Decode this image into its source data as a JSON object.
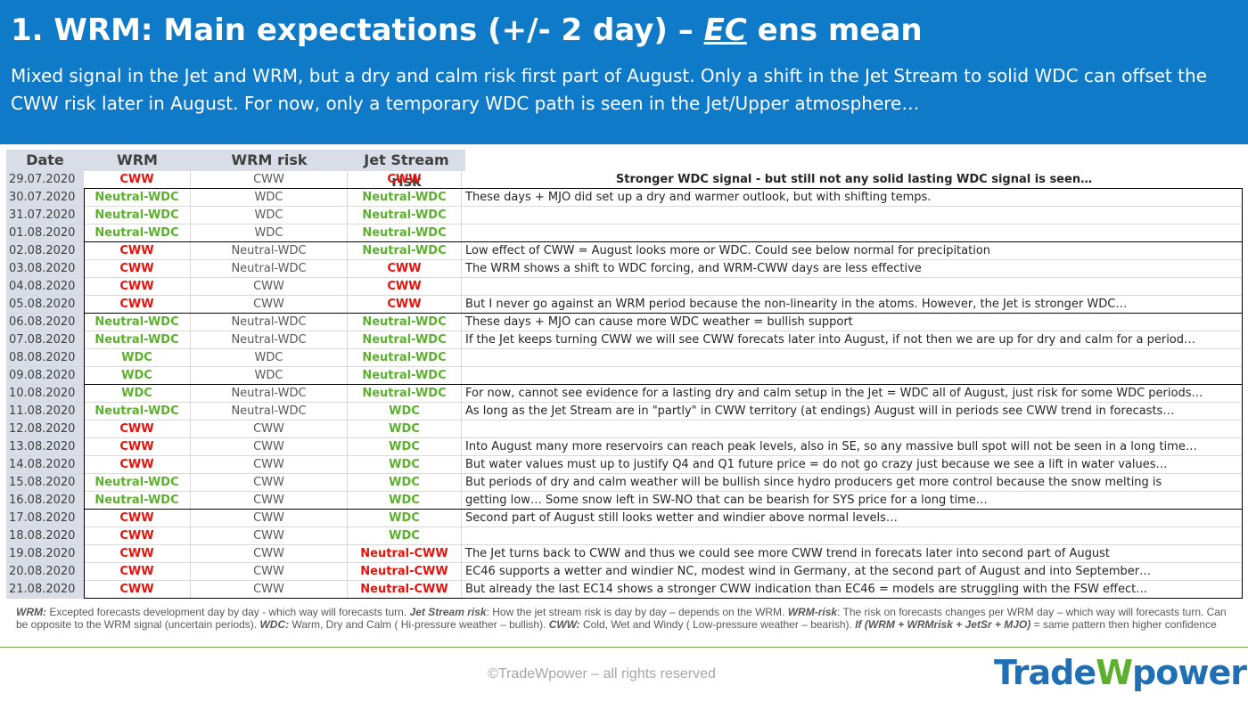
{
  "header": {
    "title_prefix": "1. WRM: Main expectations (+/- 2 day) – ",
    "title_ec": "EC",
    "title_suffix": " ens mean",
    "subtitle": "Mixed signal in the Jet and WRM, but a dry and calm risk first part of August. Only a shift in the Jet Stream to solid WDC can offset the CWW risk later in August. For now, only a temporary WDC path is seen in the Jet/Upper atmosphere…"
  },
  "colors": {
    "header_bg": "#0f7ac7",
    "cww": "#e8120c",
    "wdc": "#5cb02e",
    "neutral": "#595959"
  },
  "table": {
    "headers": [
      "Date",
      "WRM",
      "WRM risk",
      "Jet Stream risk"
    ],
    "rows": [
      {
        "date": "29.07.2020",
        "wrm": "CWW",
        "risk": "CWW",
        "jet": "CWW",
        "comment": "Stronger WDC signal - but still not any solid lasting WDC signal is seen…",
        "comment_style": "center"
      },
      {
        "date": "30.07.2020",
        "wrm": "Neutral-WDC",
        "risk": "WDC",
        "jet": "Neutral-WDC",
        "comment": "These days + MJO did set up a dry and warmer outlook, but with shifting temps."
      },
      {
        "date": "31.07.2020",
        "wrm": "Neutral-WDC",
        "risk": "WDC",
        "jet": "Neutral-WDC",
        "comment": ""
      },
      {
        "date": "01.08.2020",
        "wrm": "Neutral-WDC",
        "risk": "WDC",
        "jet": "Neutral-WDC",
        "comment": ""
      },
      {
        "date": "02.08.2020",
        "wrm": "CWW",
        "risk": "Neutral-WDC",
        "jet": "Neutral-WDC",
        "comment": "Low effect of CWW = August looks more or WDC. Could see below normal for precipitation"
      },
      {
        "date": "03.08.2020",
        "wrm": "CWW",
        "risk": "Neutral-WDC",
        "jet": "CWW",
        "comment": "The WRM shows a shift to WDC forcing, and WRM-CWW days are less effective"
      },
      {
        "date": "04.08.2020",
        "wrm": "CWW",
        "risk": "CWW",
        "jet": "CWW",
        "comment": ""
      },
      {
        "date": "05.08.2020",
        "wrm": "CWW",
        "risk": "CWW",
        "jet": "CWW",
        "comment": "But I never go against an WRM period because the non-linearity in the atoms. However, the Jet is stronger WDC…"
      },
      {
        "date": "06.08.2020",
        "wrm": "Neutral-WDC",
        "risk": "Neutral-WDC",
        "jet": "Neutral-WDC",
        "comment": "These days + MJO can cause more WDC weather = bullish support"
      },
      {
        "date": "07.08.2020",
        "wrm": "Neutral-WDC",
        "risk": "Neutral-WDC",
        "jet": "Neutral-WDC",
        "comment": "If the Jet keeps turning CWW we will see CWW forecats later into August, if not then we are up for dry and calm for a period…"
      },
      {
        "date": "08.08.2020",
        "wrm": "WDC",
        "risk": "WDC",
        "jet": "Neutral-WDC",
        "comment": ""
      },
      {
        "date": "09.08.2020",
        "wrm": "WDC",
        "risk": "WDC",
        "jet": "Neutral-WDC",
        "comment": ""
      },
      {
        "date": "10.08.2020",
        "wrm": "WDC",
        "risk": "Neutral-WDC",
        "jet": "Neutral-WDC",
        "comment": "For now, cannot see evidence for a lasting dry and calm setup in the Jet = WDC all of August, just risk for some WDC periods…"
      },
      {
        "date": "11.08.2020",
        "wrm": "Neutral-WDC",
        "risk": "Neutral-WDC",
        "jet": "WDC",
        "comment": "As long as the Jet Stream are in \"partly\" in CWW territory (at endings) August will in periods see CWW trend in forecasts…"
      },
      {
        "date": "12.08.2020",
        "wrm": "CWW",
        "risk": "CWW",
        "jet": "WDC",
        "comment": ""
      },
      {
        "date": "13.08.2020",
        "wrm": "CWW",
        "risk": "CWW",
        "jet": "WDC",
        "comment": "Into August many more reservoirs can reach peak levels, also in SE, so any massive bull spot will not be seen in a long time…"
      },
      {
        "date": "14.08.2020",
        "wrm": "CWW",
        "risk": "CWW",
        "jet": "WDC",
        "comment": "But water values must up to justify Q4 and Q1 future price = do not go crazy just because we see a lift in water values…"
      },
      {
        "date": "15.08.2020",
        "wrm": "Neutral-WDC",
        "risk": "CWW",
        "jet": "WDC",
        "comment": "But periods of dry and calm weather will be bullish since hydro producers get more control because the snow melting is"
      },
      {
        "date": "16.08.2020",
        "wrm": "Neutral-WDC",
        "risk": "CWW",
        "jet": "WDC",
        "comment": "getting low… Some snow left in SW-NO that can be bearish for SYS price for a long time…"
      },
      {
        "date": "17.08.2020",
        "wrm": "CWW",
        "risk": "CWW",
        "jet": "WDC",
        "comment": "Second part of August still looks wetter and windier above normal levels…"
      },
      {
        "date": "18.08.2020",
        "wrm": "CWW",
        "risk": "CWW",
        "jet": "WDC",
        "comment": ""
      },
      {
        "date": "19.08.2020",
        "wrm": "CWW",
        "risk": "CWW",
        "jet": "Neutral-CWW",
        "comment": "The Jet turns back to CWW and thus we could see more CWW trend in forecats later into second part of August"
      },
      {
        "date": "20.08.2020",
        "wrm": "CWW",
        "risk": "CWW",
        "jet": "Neutral-CWW",
        "comment": "EC46 supports a wetter and windier NC, modest wind in Germany, at the second part of August and into September…"
      },
      {
        "date": "21.08.2020",
        "wrm": "CWW",
        "risk": "CWW",
        "jet": "Neutral-CWW",
        "comment": "But already the last EC14 shows a stronger CWW indication than EC46 = models are struggling with the FSW effect…"
      }
    ]
  },
  "footnote": {
    "wrm_term": "WRM:",
    "wrm_def": " Excepted forecasts development day by day - which way will forecasts turn. ",
    "jet_term": "Jet Stream risk",
    "jet_def": ": How the jet stream risk is day by day – depends on the WRM. ",
    "risk_term": "WRM-risk",
    "risk_def": ": The risk on forecasts changes per WRM day – which way will forecasts turn. Can be opposite to the WRM signal (uncertain periods). ",
    "wdc_term": "WDC:",
    "wdc_def": " Warm, Dry and Calm ( Hi-pressure weather – bullish). ",
    "cww_term": "CWW:",
    "cww_def": " Cold, Wet and Windy ( Low-pressure weather – bearish). ",
    "if_term": "If (WRM + WRMrisk + JetSr + MJO)",
    "if_def": " = same pattern then higher confidence"
  },
  "footer": {
    "copyright": "©TradeWpower – all rights reserved",
    "logo_part1": "Trade",
    "logo_w": "W",
    "logo_part2": "power"
  }
}
